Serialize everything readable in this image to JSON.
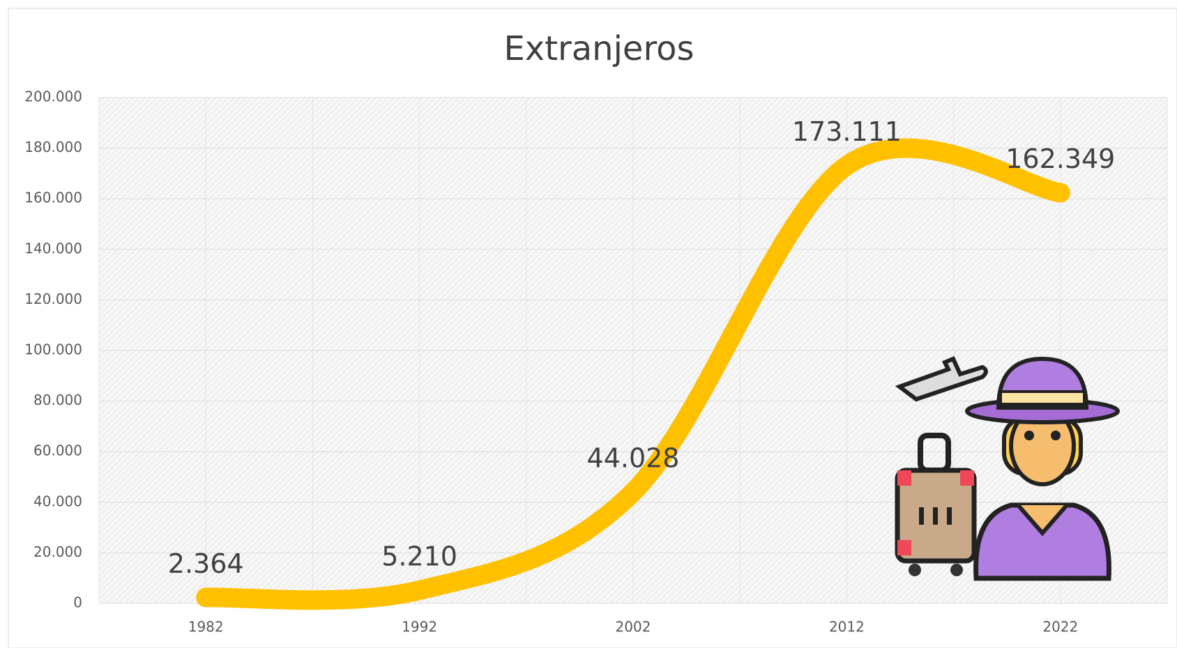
{
  "chart_data": {
    "type": "line",
    "title": "Extranjeros",
    "categories": [
      "1982",
      "1992",
      "2002",
      "2012",
      "2022"
    ],
    "values": [
      2364,
      5210,
      44028,
      173111,
      162349
    ],
    "value_labels": [
      "2.364",
      "5.210",
      "44.028",
      "173.111",
      "162.349"
    ],
    "color": "#ffc000",
    "ylim": [
      0,
      200000
    ],
    "yticks": [
      0,
      {
        "value": 20000,
        "label": "20.000"
      },
      {
        "value": 40000,
        "label": "40.000"
      },
      {
        "value": 60000,
        "label": "60.000"
      },
      {
        "value": 80000,
        "label": "80.000"
      },
      {
        "value": 100000,
        "label": "100.000"
      },
      {
        "value": 120000,
        "label": "120.000"
      },
      {
        "value": 140000,
        "label": "140.000"
      },
      {
        "value": 160000,
        "label": "160.000"
      },
      {
        "value": 180000,
        "label": "180.000"
      },
      {
        "value": 200000,
        "label": "200.000"
      }
    ],
    "grid": true
  }
}
